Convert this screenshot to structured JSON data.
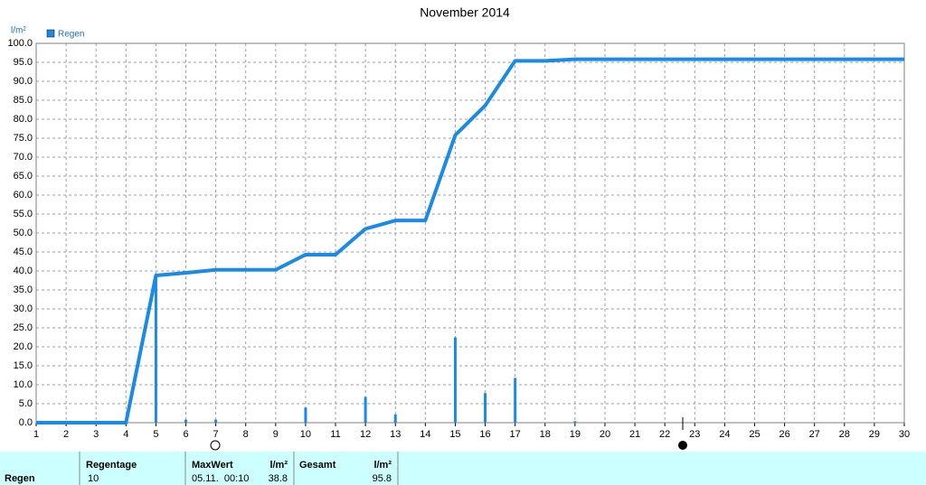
{
  "chart_data": {
    "type": "line",
    "title": "November 2014",
    "ylabel": "l/m²",
    "series": [
      {
        "name": "Regen",
        "color": "#1a8ae8",
        "type": "line",
        "x": [
          1,
          4,
          5,
          6,
          7,
          9,
          10,
          11,
          12,
          13,
          14,
          15,
          16,
          17,
          18,
          19,
          30
        ],
        "values": [
          0,
          0,
          38.8,
          39.5,
          40.3,
          40.3,
          44.3,
          44.3,
          51.1,
          53.3,
          53.3,
          75.8,
          83.6,
          95.4,
          95.4,
          95.8,
          95.8
        ]
      },
      {
        "color": "#1a8ae8",
        "type": "bar",
        "x": [
          5,
          6,
          7,
          10,
          12,
          13,
          15,
          16,
          17,
          19
        ],
        "values": [
          38.8,
          0.8,
          0.8,
          4.0,
          6.8,
          2.2,
          22.5,
          7.8,
          11.8,
          0.4
        ]
      }
    ],
    "xlim": [
      1,
      30
    ],
    "xticks": [
      1,
      2,
      3,
      4,
      5,
      6,
      7,
      8,
      9,
      10,
      11,
      12,
      13,
      14,
      15,
      16,
      17,
      18,
      19,
      20,
      21,
      22,
      23,
      24,
      25,
      26,
      27,
      28,
      29,
      30
    ],
    "ylim": [
      0,
      100
    ],
    "yticks": [
      {
        "value": 0,
        "label": "0.0"
      },
      {
        "value": 5,
        "label": "5.0"
      },
      {
        "value": 10,
        "label": "10.0"
      },
      {
        "value": 15,
        "label": "15.0"
      },
      {
        "value": 20,
        "label": "20.0"
      },
      {
        "value": 25,
        "label": "25.0"
      },
      {
        "value": 30,
        "label": "30.0"
      },
      {
        "value": 35,
        "label": "35.0"
      },
      {
        "value": 40,
        "label": "40.0"
      },
      {
        "value": 45,
        "label": "45.0"
      },
      {
        "value": 50,
        "label": "50.0"
      },
      {
        "value": 55,
        "label": "55.0"
      },
      {
        "value": 60,
        "label": "60.0"
      },
      {
        "value": 65,
        "label": "65.0"
      },
      {
        "value": 70,
        "label": "70.0"
      },
      {
        "value": 75,
        "label": "75.0"
      },
      {
        "value": 80,
        "label": "80.0"
      },
      {
        "value": 85,
        "label": "85.0"
      },
      {
        "value": 90,
        "label": "90.0"
      },
      {
        "value": 95,
        "label": "95.0"
      },
      {
        "value": 100,
        "label": "100.0"
      }
    ],
    "grid": true,
    "legend": "top-left"
  },
  "table": {
    "header": [
      "Regentage",
      "MaxWert",
      "l/m²",
      "Gesamt",
      "l/m²"
    ],
    "rows": [
      [
        "Regen",
        "10",
        "05.11.  00:10",
        "38.8",
        "95.8"
      ]
    ]
  }
}
